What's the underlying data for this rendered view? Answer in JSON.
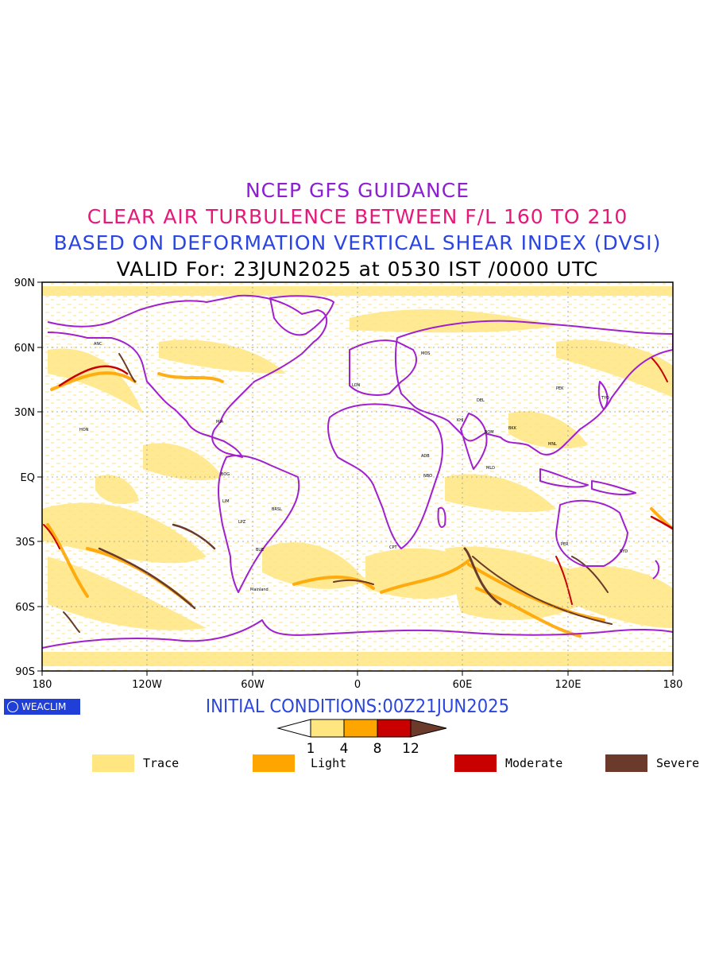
{
  "titles": {
    "line1": "NCEP GFS GUIDANCE",
    "line2": "CLEAR AIR TURBULENCE BETWEEN F/L 160 TO 210",
    "line3": "BASED ON DEFORMATION VERTICAL SHEAR INDEX (DVSI)",
    "line4": "VALID For: 23JUN2025 at 0530 IST /0000 UTC"
  },
  "map": {
    "lat_labels": [
      "90N",
      "60N",
      "30N",
      "EQ",
      "30S",
      "60S",
      "90S"
    ],
    "lon_labels": [
      "180",
      "120W",
      "60W",
      "0",
      "60E",
      "120E",
      "180"
    ],
    "colors": {
      "coastline": "#a020d0",
      "trace": "#ffe680",
      "light": "#ffa500",
      "moderate": "#c80000",
      "severe": "#6b3a2a"
    },
    "station_labels": [
      "ANC",
      "HON",
      "MIA",
      "BOG",
      "LIM",
      "LPZ",
      "BRSL",
      "BUE",
      "Mainland",
      "LON",
      "MOS",
      "CPT",
      "NBO",
      "ADB",
      "KHI",
      "DEL",
      "BOM",
      "MLD",
      "BKK",
      "PEK",
      "TYO",
      "MNL",
      "PER",
      "SYD"
    ]
  },
  "initial_conditions": "INITIAL CONDITIONS:00Z21JUN2025",
  "logo_text": "WEACLIM",
  "colorbar": {
    "ticks": [
      "1",
      "4",
      "8",
      "12"
    ],
    "colors": [
      "#ffe680",
      "#ffa500",
      "#c80000",
      "#6b3a2a"
    ]
  },
  "legend": [
    {
      "label": "Trace",
      "color": "#ffe680"
    },
    {
      "label": "Light",
      "color": "#ffa500"
    },
    {
      "label": "Moderate",
      "color": "#c80000"
    },
    {
      "label": "Severe",
      "color": "#6b3a2a"
    }
  ]
}
